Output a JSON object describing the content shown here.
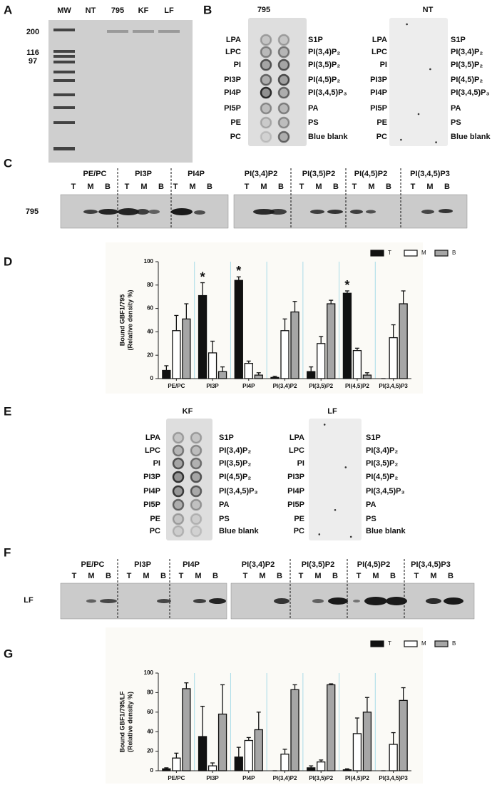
{
  "panel_labels": [
    "A",
    "B",
    "C",
    "D",
    "E",
    "F",
    "G"
  ],
  "panel_a": {
    "lanes": [
      "MW",
      "NT",
      "795",
      "KF",
      "LF"
    ],
    "markers": [
      200,
      116,
      97
    ]
  },
  "lipid_strips": {
    "blots": [
      "795",
      "NT",
      "KF",
      "LF"
    ],
    "left": [
      "LPA",
      "LPC",
      "PI",
      "PI3P",
      "PI4P",
      "PI5P",
      "PE",
      "PC"
    ],
    "right": [
      "S1P",
      "PI(3,4)P₂",
      "PI(3,5)P₂",
      "PI(4,5)P₂",
      "PI(3,4,5)P₃",
      "PA",
      "PS",
      "Blue blank"
    ]
  },
  "blots": {
    "lipids": [
      "PE/PC",
      "PI3P",
      "PI4P",
      "PI(3,4)P2",
      "PI(3,5)P2",
      "PI(4,5)P2",
      "PI(3,4,5)P3"
    ],
    "lanes": [
      "T",
      "M",
      "B"
    ],
    "rows": [
      "795",
      "LF"
    ]
  },
  "chart_data": [
    {
      "type": "bar",
      "y_label": [
        "Bound GBF1/795",
        "(Relative density %)"
      ],
      "categories": [
        "PE/PC",
        "PI3P",
        "PI4P",
        "PI(3,4)P2",
        "PI(3,5)P2",
        "PI(4,5)P2",
        "PI(3,4,5)P3"
      ],
      "series": [
        {
          "name": "T",
          "color": "#111111",
          "values": [
            7,
            71,
            84,
            1,
            6,
            73,
            0
          ],
          "errors": [
            4,
            11,
            3,
            1,
            4,
            2,
            0
          ],
          "significance": [
            null,
            "*",
            "*",
            null,
            null,
            "*",
            null
          ]
        },
        {
          "name": "M",
          "color": "#ffffff",
          "values": [
            41,
            22,
            13,
            41,
            30,
            24,
            35
          ],
          "errors": [
            13,
            10,
            2,
            10,
            6,
            2,
            11
          ]
        },
        {
          "name": "B",
          "color": "#a6a6a6",
          "values": [
            51,
            6,
            3,
            57,
            64,
            3,
            64
          ],
          "errors": [
            13,
            4,
            2,
            9,
            3,
            2,
            11
          ]
        }
      ],
      "ylim": [
        0,
        100
      ],
      "yticks": [
        0,
        20,
        40,
        60,
        80,
        100
      ],
      "grid": false,
      "legend": "top right"
    },
    {
      "type": "bar",
      "y_label": [
        "Bound GBF1/795/LF",
        "(Relative density %)"
      ],
      "categories": [
        "PE/PC",
        "PI3P",
        "PI4P",
        "PI(3,4)P2",
        "PI(3,5)P2",
        "PI(4,5)P2",
        "PI(3,4,5)P3"
      ],
      "series": [
        {
          "name": "T",
          "color": "#111111",
          "values": [
            2,
            35,
            14,
            0,
            3,
            1,
            0
          ],
          "errors": [
            1,
            31,
            10,
            0,
            2,
            1,
            0
          ]
        },
        {
          "name": "M",
          "color": "#ffffff",
          "values": [
            13,
            5,
            31,
            17,
            9,
            38,
            27
          ],
          "errors": [
            5,
            3,
            3,
            5,
            2,
            16,
            12
          ]
        },
        {
          "name": "B",
          "color": "#a6a6a6",
          "values": [
            84,
            58,
            42,
            83,
            88,
            60,
            72
          ],
          "errors": [
            6,
            30,
            18,
            5,
            1,
            15,
            13
          ]
        }
      ],
      "ylim": [
        0,
        100
      ],
      "yticks": [
        0,
        20,
        40,
        60,
        80,
        100
      ],
      "grid": false,
      "legend": "top right"
    }
  ]
}
